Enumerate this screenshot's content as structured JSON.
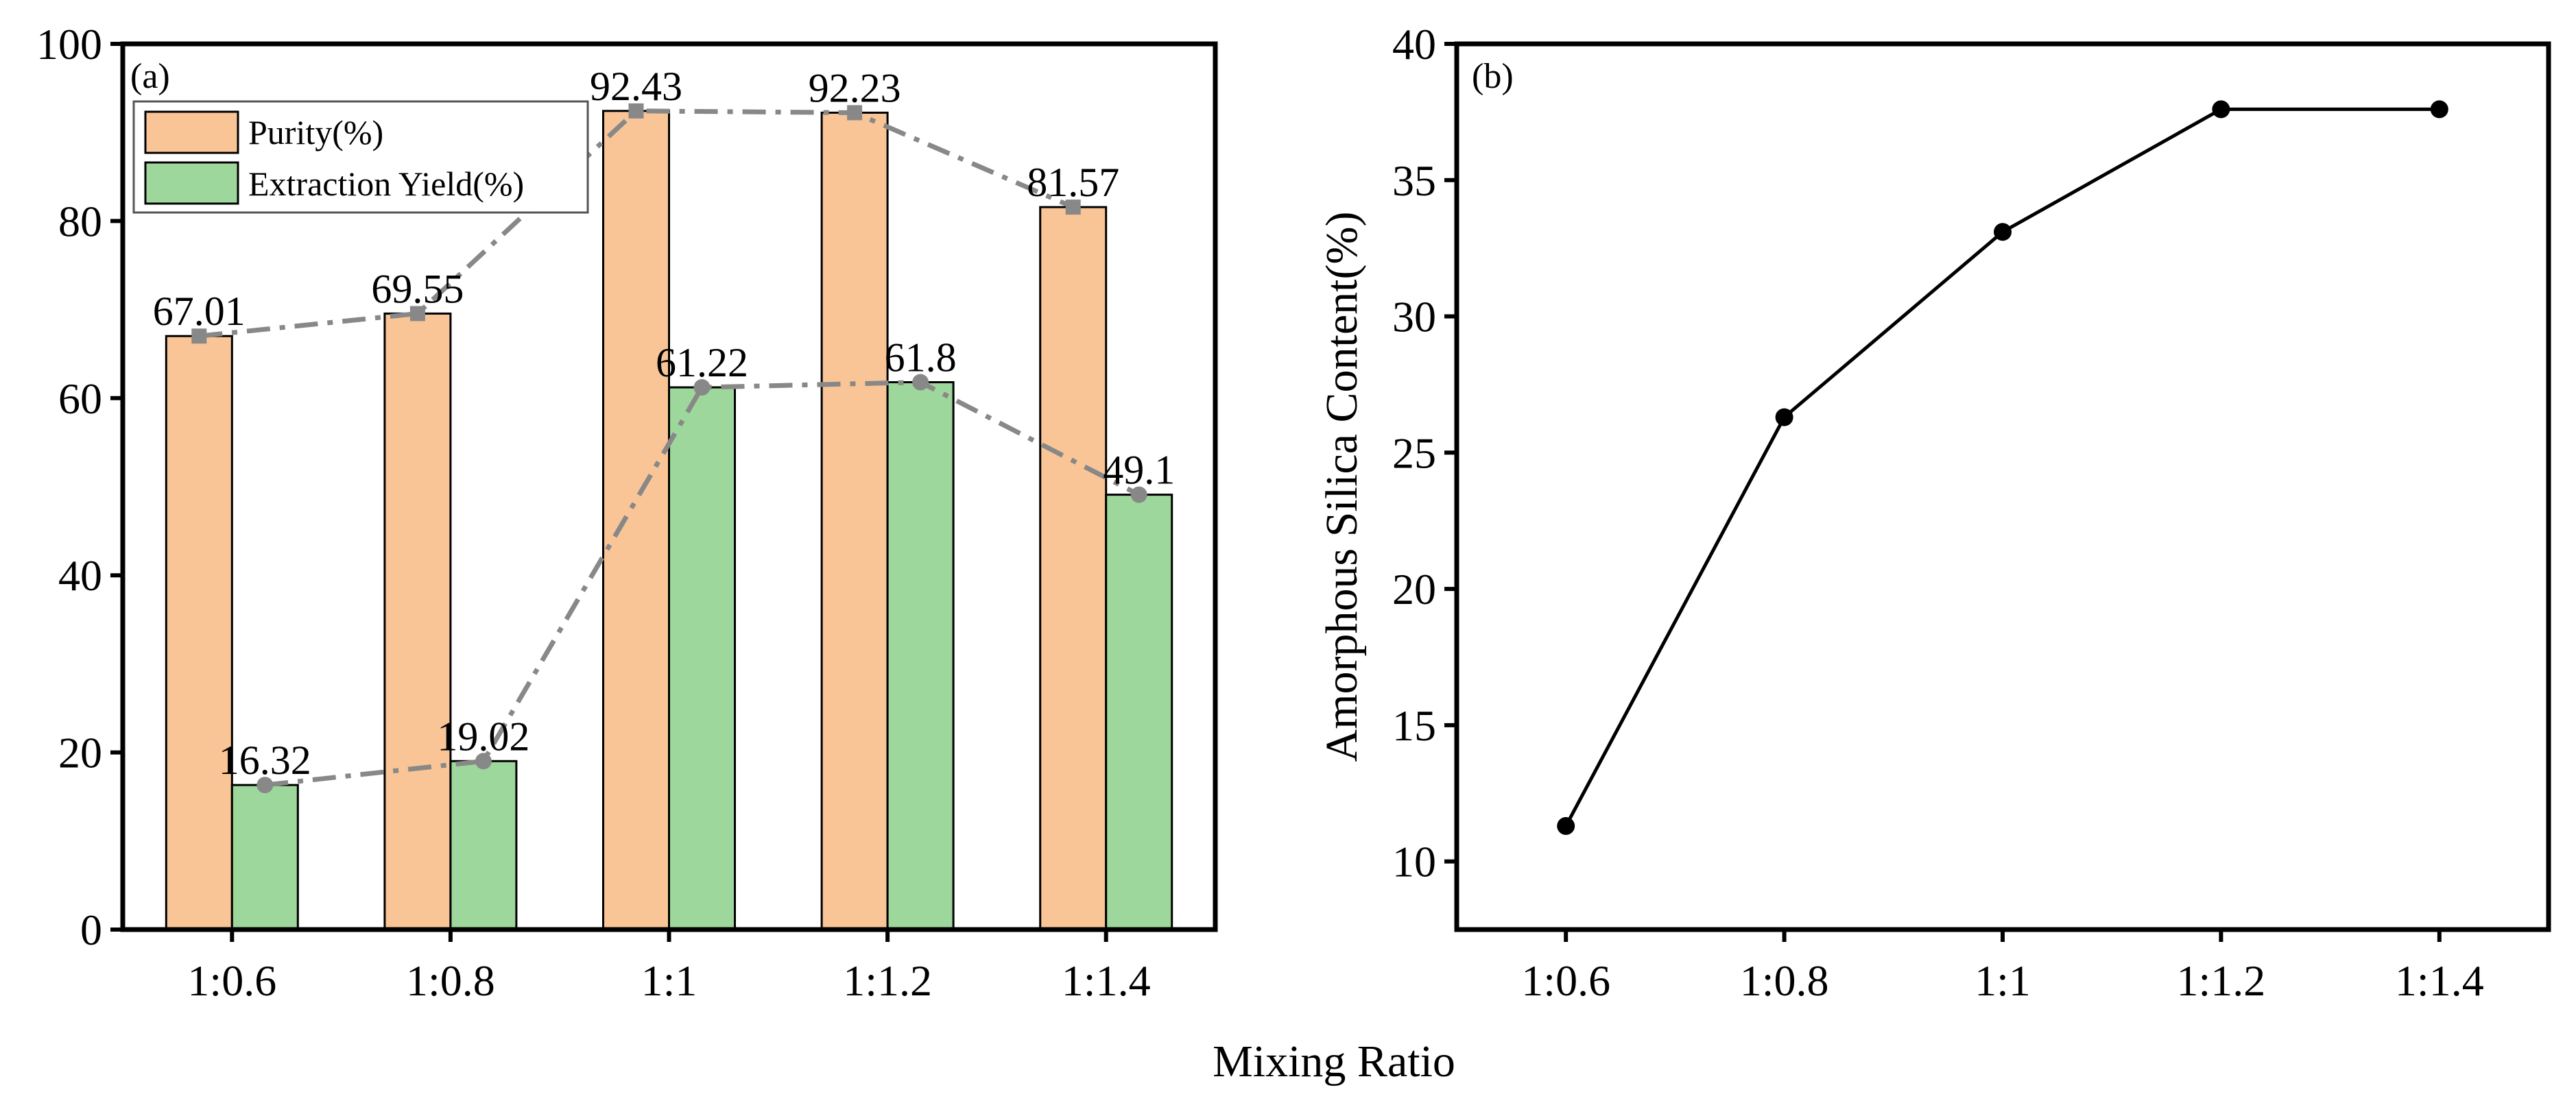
{
  "figure": {
    "shared_xlabel": "Mixing Ratio"
  },
  "colors": {
    "purity": "#F9C597",
    "yield": "#9ED79B",
    "trend": "#888888",
    "line": "#000000",
    "axis": "#000000"
  },
  "chart_data": [
    {
      "panel_label": "(a)",
      "type": "bar",
      "categories": [
        "1:0.6",
        "1:0.8",
        "1:1",
        "1:1.2",
        "1:1.4"
      ],
      "series": [
        {
          "name": "Purity(%)",
          "values": [
            67.01,
            69.55,
            92.43,
            92.23,
            81.57
          ]
        },
        {
          "name": "Extraction Yield(%)",
          "values": [
            16.32,
            19.02,
            61.22,
            61.8,
            49.1
          ]
        }
      ],
      "value_labels": [
        [
          "67.01",
          "69.55",
          "92.43",
          "92.23",
          "81.57"
        ],
        [
          "16.32",
          "19.02",
          "61.22",
          "61.8",
          "49.1"
        ]
      ],
      "trend_lines": "dash-dot connecting bar tops",
      "xlabel": "",
      "ylabel": "",
      "ylim": [
        0,
        100
      ],
      "yticks": [
        0,
        20,
        40,
        60,
        80,
        100
      ],
      "legend_position": "top-left"
    },
    {
      "panel_label": "(b)",
      "type": "line",
      "categories": [
        "1:0.6",
        "1:0.8",
        "1:1",
        "1:1.2",
        "1:1.4"
      ],
      "series": [
        {
          "name": "Amorphous Silica Content(%)",
          "values": [
            11.3,
            26.3,
            33.1,
            37.6,
            37.6
          ]
        }
      ],
      "xlabel": "",
      "ylabel": "Amorphous Silica Content(%)",
      "ylim": [
        7.5,
        40
      ],
      "yticks": [
        10,
        15,
        20,
        25,
        30,
        35,
        40
      ]
    }
  ]
}
